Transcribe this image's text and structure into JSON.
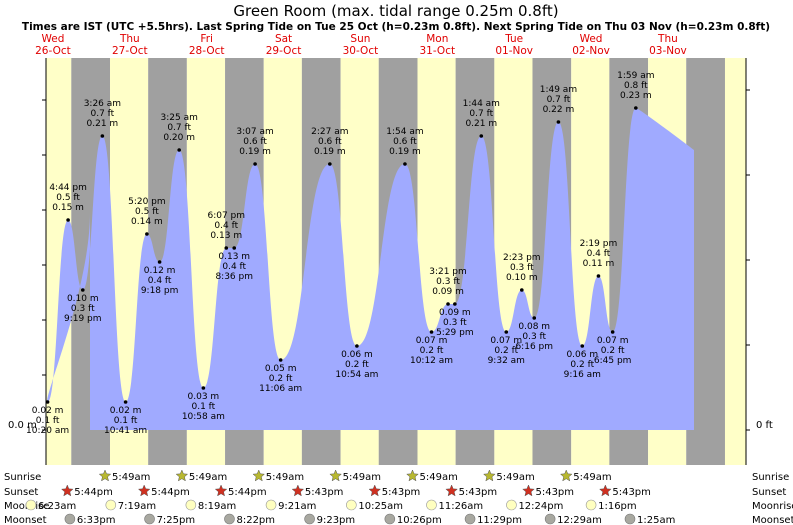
{
  "title": "Green Room (max. tidal range 0.25m 0.8ft)",
  "subtitle": "Times are IST (UTC +5.5hrs). Last Spring Tide on Tue 25 Oct (h=0.23m 0.8ft). Next Spring Tide on Thu 03 Nov (h=0.23m 0.8ft)",
  "axis": {
    "left_label": "0.0 m",
    "right_label": "0 ft"
  },
  "row_labels": {
    "sunrise": "Sunrise",
    "sunset": "Sunset",
    "moonrise": "Moonrise",
    "moonset": "Moonset"
  },
  "colors": {
    "day_bg": "#ffffc8",
    "night_bg": "#a0a0a0",
    "tide_fill": "#a0aaff",
    "day_label": "#e00000",
    "sun_star": "#b8b830",
    "sunset_star": "#d03020",
    "moon_rise": "#ffffc0",
    "moon_set": "#a8a8a0"
  },
  "chart_data": {
    "type": "area",
    "xlabel": "",
    "ylabel": "",
    "ylim": [
      0,
      0.25
    ],
    "x_unit": "hours from Wed 26-Oct 00:00 IST",
    "days": [
      {
        "dow": "Wed",
        "date": "26-Oct"
      },
      {
        "dow": "Thu",
        "date": "27-Oct"
      },
      {
        "dow": "Fri",
        "date": "28-Oct"
      },
      {
        "dow": "Sat",
        "date": "29-Oct"
      },
      {
        "dow": "Sun",
        "date": "30-Oct"
      },
      {
        "dow": "Mon",
        "date": "31-Oct"
      },
      {
        "dow": "Tue",
        "date": "01-Nov"
      },
      {
        "dow": "Wed",
        "date": "02-Nov"
      },
      {
        "dow": "Thu",
        "date": "03-Nov"
      }
    ],
    "tides": [
      {
        "day": 0,
        "time": "10:20 am",
        "m": "0.02 m",
        "ft": "0.1 ft",
        "height": 0.02,
        "type": "low"
      },
      {
        "day": 0,
        "time": "4:44 pm",
        "m": "0.15 m",
        "ft": "0.5 ft",
        "height": 0.15,
        "type": "high"
      },
      {
        "day": 0,
        "time": "9:19 pm",
        "m": "0.10 m",
        "ft": "0.3 ft",
        "height": 0.1,
        "type": "low"
      },
      {
        "day": 1,
        "time": "3:26 am",
        "m": "0.21 m",
        "ft": "0.7 ft",
        "height": 0.21,
        "type": "high"
      },
      {
        "day": 1,
        "time": "10:41 am",
        "m": "0.02 m",
        "ft": "0.1 ft",
        "height": 0.02,
        "type": "low"
      },
      {
        "day": 1,
        "time": "5:20 pm",
        "m": "0.14 m",
        "ft": "0.5 ft",
        "height": 0.14,
        "type": "high"
      },
      {
        "day": 1,
        "time": "9:18 pm",
        "m": "0.12 m",
        "ft": "0.4 ft",
        "height": 0.12,
        "type": "low"
      },
      {
        "day": 2,
        "time": "3:25 am",
        "m": "0.20 m",
        "ft": "0.7 ft",
        "height": 0.2,
        "type": "high"
      },
      {
        "day": 2,
        "time": "10:58 am",
        "m": "0.03 m",
        "ft": "0.1 ft",
        "height": 0.03,
        "type": "low"
      },
      {
        "day": 2,
        "time": "6:07 pm",
        "m": "0.13 m",
        "ft": "0.4 ft",
        "height": 0.13,
        "type": "high"
      },
      {
        "day": 2,
        "time": "8:36 pm",
        "m": "0.13 m",
        "ft": "0.4 ft",
        "height": 0.13,
        "type": "low"
      },
      {
        "day": 3,
        "time": "3:07 am",
        "m": "0.19 m",
        "ft": "0.6 ft",
        "height": 0.19,
        "type": "high"
      },
      {
        "day": 3,
        "time": "11:06 am",
        "m": "0.05 m",
        "ft": "0.2 ft",
        "height": 0.05,
        "type": "low"
      },
      {
        "day": 4,
        "time": "2:27 am",
        "m": "0.19 m",
        "ft": "0.6 ft",
        "height": 0.19,
        "type": "high"
      },
      {
        "day": 4,
        "time": "10:54 am",
        "m": "0.06 m",
        "ft": "0.2 ft",
        "height": 0.06,
        "type": "low"
      },
      {
        "day": 5,
        "time": "1:54 am",
        "m": "0.19 m",
        "ft": "0.6 ft",
        "height": 0.19,
        "type": "high"
      },
      {
        "day": 5,
        "time": "10:12 am",
        "m": "0.07 m",
        "ft": "0.2 ft",
        "height": 0.07,
        "type": "low"
      },
      {
        "day": 5,
        "time": "3:21 pm",
        "m": "0.09 m",
        "ft": "0.3 ft",
        "height": 0.09,
        "type": "high"
      },
      {
        "day": 5,
        "time": "5:29 pm",
        "m": "0.09 m",
        "ft": "0.3 ft",
        "height": 0.09,
        "type": "low"
      },
      {
        "day": 6,
        "time": "1:44 am",
        "m": "0.21 m",
        "ft": "0.7 ft",
        "height": 0.21,
        "type": "high"
      },
      {
        "day": 6,
        "time": "9:32 am",
        "m": "0.07 m",
        "ft": "0.2 ft",
        "height": 0.07,
        "type": "low"
      },
      {
        "day": 6,
        "time": "2:23 pm",
        "m": "0.10 m",
        "ft": "0.3 ft",
        "height": 0.1,
        "type": "high"
      },
      {
        "day": 6,
        "time": "6:16 pm",
        "m": "0.08 m",
        "ft": "0.3 ft",
        "height": 0.08,
        "type": "low"
      },
      {
        "day": 7,
        "time": "1:49 am",
        "m": "0.22 m",
        "ft": "0.7 ft",
        "height": 0.22,
        "type": "high"
      },
      {
        "day": 7,
        "time": "9:16 am",
        "m": "0.06 m",
        "ft": "0.2 ft",
        "height": 0.06,
        "type": "low"
      },
      {
        "day": 7,
        "time": "2:19 pm",
        "m": "0.11 m",
        "ft": "0.4 ft",
        "height": 0.11,
        "type": "high"
      },
      {
        "day": 7,
        "time": "6:45 pm",
        "m": "0.07 m",
        "ft": "0.2 ft",
        "height": 0.07,
        "type": "low"
      },
      {
        "day": 8,
        "time": "1:59 am",
        "m": "0.23 m",
        "ft": "0.8 ft",
        "height": 0.23,
        "type": "high"
      }
    ],
    "sunrise": [
      {
        "day": 1,
        "time": "5:49am"
      },
      {
        "day": 2,
        "time": "5:49am"
      },
      {
        "day": 3,
        "time": "5:49am"
      },
      {
        "day": 4,
        "time": "5:49am"
      },
      {
        "day": 5,
        "time": "5:49am"
      },
      {
        "day": 6,
        "time": "5:49am"
      },
      {
        "day": 7,
        "time": "5:49am"
      }
    ],
    "sunset": [
      {
        "day": 0,
        "time": "5:44pm"
      },
      {
        "day": 1,
        "time": "5:44pm"
      },
      {
        "day": 2,
        "time": "5:44pm"
      },
      {
        "day": 3,
        "time": "5:43pm"
      },
      {
        "day": 4,
        "time": "5:43pm"
      },
      {
        "day": 5,
        "time": "5:43pm"
      },
      {
        "day": 6,
        "time": "5:43pm"
      },
      {
        "day": 7,
        "time": "5:43pm"
      }
    ],
    "moonrise": [
      {
        "day": 0,
        "time": "6:23am"
      },
      {
        "day": 1,
        "time": "7:19am"
      },
      {
        "day": 2,
        "time": "8:19am"
      },
      {
        "day": 3,
        "time": "9:21am"
      },
      {
        "day": 4,
        "time": "10:25am"
      },
      {
        "day": 5,
        "time": "11:26am"
      },
      {
        "day": 6,
        "time": "12:24pm"
      },
      {
        "day": 7,
        "time": "1:16pm"
      }
    ],
    "moonset": [
      {
        "day": 0,
        "time": "6:33pm"
      },
      {
        "day": 1,
        "time": "7:25pm"
      },
      {
        "day": 2,
        "time": "8:22pm"
      },
      {
        "day": 3,
        "time": "9:23pm"
      },
      {
        "day": 4,
        "time": "10:26pm"
      },
      {
        "day": 5,
        "time": "11:29pm"
      },
      {
        "day": 7,
        "time": "12:29am"
      },
      {
        "day": 8,
        "time": "1:25am"
      }
    ]
  }
}
